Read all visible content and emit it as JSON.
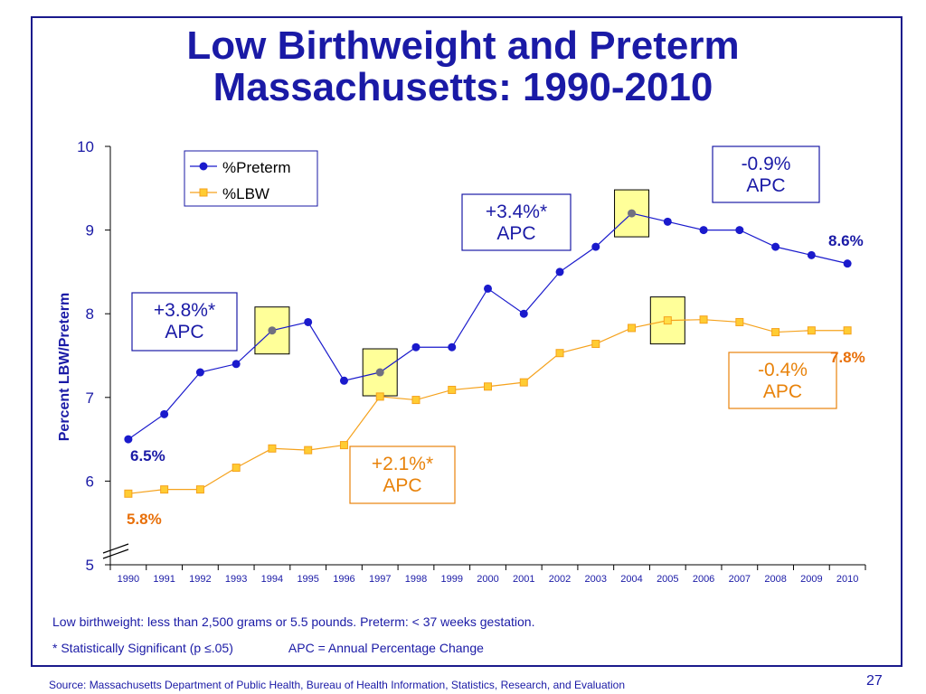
{
  "title_line1": "Low Birthweight and Preterm",
  "title_line2": "Massachusetts: 1990-2010",
  "chart_data": {
    "type": "line",
    "ylabel": "Percent LBW/Preterm",
    "ylim": [
      5,
      10
    ],
    "yticks": [
      5,
      6,
      7,
      8,
      9,
      10
    ],
    "x": [
      1990,
      1991,
      1992,
      1993,
      1994,
      1995,
      1996,
      1997,
      1998,
      1999,
      2000,
      2001,
      2002,
      2003,
      2004,
      2005,
      2006,
      2007,
      2008,
      2009,
      2010
    ],
    "series": [
      {
        "name": "%Preterm",
        "color": "#1a1acc",
        "marker": "circle",
        "values": [
          6.5,
          6.8,
          7.3,
          7.4,
          7.8,
          7.9,
          7.2,
          7.3,
          7.6,
          7.6,
          8.3,
          8.0,
          8.5,
          8.8,
          9.2,
          9.1,
          9.0,
          9.0,
          8.8,
          8.7,
          8.6
        ]
      },
      {
        "name": "%LBW",
        "color": "#f5a21d",
        "marker": "square",
        "values": [
          5.85,
          5.9,
          5.9,
          6.16,
          6.39,
          6.37,
          6.43,
          7.01,
          6.97,
          7.09,
          7.13,
          7.18,
          7.53,
          7.64,
          7.83,
          7.92,
          7.93,
          7.9,
          7.78,
          7.8,
          7.8
        ]
      }
    ],
    "legend": {
      "position": "top-left",
      "labels": [
        "%Preterm",
        "%LBW"
      ]
    },
    "highlight_years": [
      {
        "series": "%Preterm",
        "year": 1994
      },
      {
        "series": "%Preterm",
        "year": 1997
      },
      {
        "series": "%Preterm",
        "year": 2004
      },
      {
        "series": "%LBW",
        "year": 2005
      }
    ],
    "annotations": [
      {
        "line1": "+3.8%*",
        "line2": "APC",
        "color": "#1a1aa6"
      },
      {
        "line1": "+3.4%*",
        "line2": "APC",
        "color": "#1a1aa6"
      },
      {
        "line1": "-0.9%",
        "line2": "APC",
        "color": "#1a1aa6"
      },
      {
        "line1": "+2.1%*",
        "line2": "APC",
        "color": "#e8820a"
      },
      {
        "line1": "-0.4%",
        "line2": "APC",
        "color": "#e8820a"
      }
    ],
    "value_labels": [
      {
        "text": "6.5%",
        "color": "#1a1aa6"
      },
      {
        "text": "5.8%",
        "color": "#e8700a"
      },
      {
        "text": "8.6%",
        "color": "#1a1aa6"
      },
      {
        "text": "7.8%",
        "color": "#e8700a"
      }
    ]
  },
  "footnote1": "Low birthweight: less than 2,500 grams or 5.5 pounds.  Preterm: < 37 weeks gestation.",
  "footnote2a": "* Statistically Significant  (p ≤.05)",
  "footnote2b": "APC = Annual Percentage Change",
  "source": "Source:  Massachusetts Department of Public Health, Bureau of Health Information, Statistics, Research, and Evaluation",
  "page_number": "27"
}
